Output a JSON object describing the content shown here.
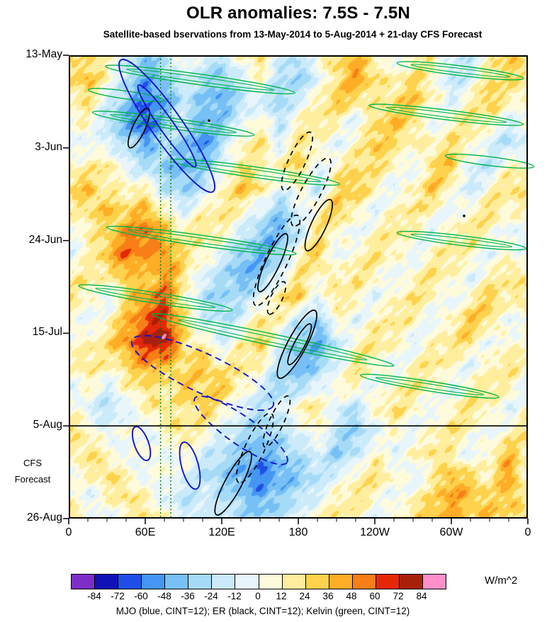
{
  "title": "OLR anomalies: 7.5S - 7.5N",
  "subtitle": "Satellite-based bservations from 13-May-2014 to 5-Aug-2014 + 21-day CFS Forecast",
  "caption": "MJO (blue, CINT=12); ER (black, CINT=12); Kelvin (green, CINT=12)",
  "y_axis": {
    "ticks": [
      "13-May",
      "3-Jun",
      "24-Jun",
      "15-Jul",
      "5-Aug",
      "26-Aug"
    ],
    "side_label_lines": [
      "CFS",
      "Forecast"
    ]
  },
  "x_axis": {
    "ticks": [
      "0",
      "60E",
      "120E",
      "180",
      "120W",
      "60W",
      "0"
    ]
  },
  "colorbar": {
    "unit": "W/m^2",
    "labels": [
      "-84",
      "-72",
      "-60",
      "-48",
      "-36",
      "-24",
      "-12",
      "0",
      "12",
      "24",
      "36",
      "48",
      "60",
      "72",
      "84"
    ],
    "colors": [
      "#7D2EC8",
      "#1111B8",
      "#1F4FE8",
      "#4496F2",
      "#77C0F5",
      "#A6DBF7",
      "#CBEAFA",
      "#E8F6FB",
      "#FEFBDC",
      "#FFEE9E",
      "#FFD24D",
      "#FFAC26",
      "#F87E17",
      "#E42807",
      "#A8200A",
      "#FF8FC8"
    ]
  },
  "chart_data": {
    "type": "heatmap",
    "title": "OLR anomalies: 7.5S - 7.5N",
    "subtitle": "Satellite-based bservations from 13-May-2014 to 5-Aug-2014 + 21-day CFS Forecast",
    "quantity": "OLR anomaly",
    "unit": "W/m^2",
    "x": {
      "name": "longitude",
      "range_deg": [
        0,
        360
      ],
      "tick_degs": [
        0,
        60,
        120,
        180,
        240,
        300,
        360
      ],
      "tick_labels": [
        "0",
        "60E",
        "120E",
        "180",
        "120W",
        "60W",
        "0"
      ],
      "minor_step_deg": 15
    },
    "y": {
      "name": "time",
      "range_days": [
        0,
        105
      ],
      "tick_days": [
        0,
        21,
        42,
        63,
        84,
        105
      ],
      "tick_labels": [
        "13-May",
        "3-Jun",
        "24-Jun",
        "15-Jul",
        "5-Aug",
        "26-Aug"
      ]
    },
    "levels": [
      -84,
      -72,
      -60,
      -48,
      -36,
      -24,
      -12,
      0,
      12,
      24,
      36,
      48,
      60,
      72,
      84
    ],
    "level_colors": [
      "#7D2EC8",
      "#1111B8",
      "#1F4FE8",
      "#4496F2",
      "#77C0F5",
      "#A6DBF7",
      "#CBEAFA",
      "#E8F6FB",
      "#FEFBDC",
      "#FFEE9E",
      "#FFD24D",
      "#FFAC26",
      "#F87E17",
      "#E42807",
      "#A8200A",
      "#FF8FC8"
    ],
    "grid": {
      "lon_start": 0,
      "lon_step_deg": 15,
      "day_start": 0,
      "day_step": 5
    },
    "forecast_start_day": 84,
    "reference_lons": [
      72,
      80
    ],
    "values": [
      [
        12,
        24,
        12,
        -12,
        -36,
        -24,
        12,
        -12,
        -24,
        12,
        24,
        -12,
        -24,
        12,
        24,
        36,
        12,
        -12,
        12,
        24,
        -12,
        -24,
        12,
        36,
        12
      ],
      [
        24,
        36,
        12,
        -24,
        -48,
        -36,
        -12,
        -24,
        -36,
        -12,
        12,
        -24,
        -36,
        -12,
        24,
        48,
        24,
        12,
        24,
        12,
        -24,
        -12,
        24,
        24,
        24
      ],
      [
        12,
        24,
        -12,
        -36,
        -60,
        -48,
        -24,
        -36,
        -48,
        -24,
        -12,
        -36,
        -12,
        12,
        36,
        24,
        12,
        24,
        36,
        12,
        -12,
        12,
        36,
        12,
        12
      ],
      [
        0,
        12,
        -24,
        -48,
        -72,
        -36,
        -12,
        -48,
        -36,
        -12,
        12,
        -24,
        12,
        24,
        12,
        -12,
        24,
        36,
        24,
        -12,
        12,
        24,
        12,
        -12,
        0
      ],
      [
        -12,
        0,
        -12,
        -24,
        -48,
        -24,
        -36,
        -60,
        -24,
        12,
        24,
        -12,
        24,
        12,
        -12,
        12,
        36,
        24,
        12,
        12,
        24,
        12,
        -12,
        -24,
        -12
      ],
      [
        12,
        12,
        24,
        -12,
        -24,
        -36,
        -48,
        -36,
        -12,
        24,
        12,
        12,
        36,
        -12,
        12,
        24,
        24,
        12,
        -12,
        24,
        36,
        -12,
        -24,
        12,
        12
      ],
      [
        24,
        36,
        12,
        12,
        12,
        -24,
        -36,
        -24,
        12,
        36,
        24,
        -12,
        12,
        -24,
        24,
        36,
        12,
        -12,
        12,
        36,
        12,
        -24,
        12,
        24,
        24
      ],
      [
        12,
        24,
        36,
        24,
        36,
        12,
        -12,
        12,
        24,
        12,
        -12,
        -36,
        -12,
        12,
        36,
        12,
        -12,
        12,
        24,
        12,
        -12,
        12,
        24,
        12,
        12
      ],
      [
        0,
        12,
        24,
        48,
        60,
        36,
        12,
        24,
        12,
        -12,
        -36,
        -48,
        -24,
        24,
        12,
        -12,
        12,
        24,
        12,
        -12,
        12,
        24,
        12,
        -12,
        0
      ],
      [
        -12,
        12,
        36,
        60,
        48,
        48,
        24,
        12,
        -12,
        -36,
        -48,
        -36,
        12,
        36,
        -12,
        12,
        24,
        12,
        -12,
        12,
        24,
        12,
        -12,
        12,
        -12
      ],
      [
        12,
        24,
        12,
        36,
        24,
        48,
        24,
        -12,
        -24,
        -48,
        -36,
        -12,
        24,
        12,
        12,
        24,
        12,
        -12,
        12,
        24,
        12,
        -12,
        12,
        24,
        12
      ],
      [
        24,
        12,
        -12,
        24,
        48,
        60,
        12,
        -24,
        -36,
        -24,
        -12,
        24,
        36,
        -12,
        24,
        12,
        -12,
        12,
        24,
        12,
        -12,
        12,
        36,
        12,
        24
      ],
      [
        12,
        -12,
        12,
        36,
        60,
        72,
        24,
        -12,
        -24,
        -12,
        24,
        12,
        -24,
        -36,
        12,
        -12,
        12,
        24,
        12,
        -12,
        12,
        36,
        24,
        -12,
        12
      ],
      [
        0,
        12,
        24,
        48,
        72,
        84,
        24,
        12,
        -12,
        12,
        36,
        -12,
        -36,
        -48,
        -24,
        12,
        24,
        12,
        -12,
        12,
        24,
        24,
        -12,
        12,
        0
      ],
      [
        12,
        24,
        12,
        24,
        48,
        36,
        24,
        36,
        12,
        24,
        12,
        -24,
        -48,
        -36,
        -12,
        24,
        12,
        -12,
        12,
        24,
        12,
        -12,
        12,
        24,
        12
      ],
      [
        -12,
        12,
        -12,
        12,
        24,
        12,
        36,
        24,
        36,
        12,
        -12,
        -36,
        -24,
        -12,
        12,
        12,
        -12,
        12,
        24,
        12,
        -12,
        12,
        24,
        12,
        -12
      ],
      [
        12,
        -12,
        -24,
        -12,
        12,
        24,
        12,
        36,
        12,
        -12,
        -24,
        -12,
        12,
        24,
        -12,
        -24,
        12,
        24,
        12,
        -12,
        12,
        24,
        12,
        -12,
        12
      ],
      [
        24,
        12,
        -12,
        12,
        -12,
        12,
        24,
        12,
        -12,
        -24,
        -36,
        -24,
        -12,
        12,
        -24,
        -36,
        -12,
        12,
        -12,
        12,
        24,
        12,
        -12,
        12,
        24
      ],
      [
        12,
        24,
        12,
        -12,
        12,
        -12,
        12,
        -12,
        -24,
        -36,
        -48,
        -36,
        -24,
        -12,
        -36,
        -24,
        12,
        -12,
        12,
        24,
        12,
        -12,
        12,
        36,
        12
      ],
      [
        0,
        12,
        24,
        12,
        -12,
        12,
        -12,
        -24,
        -36,
        -48,
        -60,
        -48,
        -36,
        -24,
        -12,
        12,
        24,
        12,
        -12,
        12,
        36,
        24,
        12,
        48,
        0
      ],
      [
        12,
        -12,
        12,
        24,
        12,
        -12,
        -24,
        -12,
        -24,
        -36,
        -48,
        -36,
        -24,
        -12,
        12,
        24,
        12,
        -12,
        12,
        24,
        48,
        36,
        24,
        36,
        12
      ],
      [
        24,
        12,
        -12,
        12,
        24,
        12,
        -12,
        -24,
        -12,
        -24,
        -36,
        -24,
        -12,
        12,
        24,
        12,
        -12,
        12,
        24,
        36,
        36,
        24,
        36,
        24,
        24
      ]
    ],
    "overlays": {
      "kelvin": {
        "name": "Kelvin",
        "color": "#00B448",
        "cint": 12,
        "ellipses": [
          {
            "lon": 103,
            "day": 5.5,
            "rlon": 75,
            "rday": 1.2,
            "angle": 8
          },
          {
            "lon": 307,
            "day": 3.5,
            "rlon": 50,
            "rday": 1.1,
            "angle": 7
          },
          {
            "lon": 45,
            "day": 9,
            "rlon": 30,
            "rday": 0.9,
            "angle": 8
          },
          {
            "lon": 82,
            "day": 15.5,
            "rlon": 64,
            "rday": 1.2,
            "angle": 8
          },
          {
            "lon": 296,
            "day": 13.5,
            "rlon": 61,
            "rday": 1.1,
            "angle": 7
          },
          {
            "lon": 146,
            "day": 26.5,
            "rlon": 67,
            "rday": 1.2,
            "angle": 8
          },
          {
            "lon": 330,
            "day": 24,
            "rlon": 35,
            "rday": 1.0,
            "angle": 7
          },
          {
            "lon": 104,
            "day": 42,
            "rlon": 75,
            "rday": 1.2,
            "angle": 8
          },
          {
            "lon": 308,
            "day": 42,
            "rlon": 51,
            "rday": 1.1,
            "angle": 7
          },
          {
            "lon": 68,
            "day": 55,
            "rlon": 61,
            "rday": 1.2,
            "angle": 9
          },
          {
            "lon": 160,
            "day": 64.5,
            "rlon": 97,
            "rday": 1.3,
            "angle": 12
          },
          {
            "lon": 283,
            "day": 75,
            "rlon": 55,
            "rday": 1.1,
            "angle": 9
          }
        ]
      },
      "er": {
        "name": "ER",
        "color": "#000000",
        "cint": 12,
        "ellipses": [
          {
            "lon": 55,
            "day": 16.5,
            "rlon": 17,
            "rday": 1.4,
            "angle": 115,
            "dash": false
          },
          {
            "lon": 179,
            "day": 24,
            "rlon": 25,
            "rday": 1.9,
            "angle": 115,
            "dash": true
          },
          {
            "lon": 190,
            "day": 31,
            "rlon": 30,
            "rday": 2.2,
            "angle": 118,
            "dash": true
          },
          {
            "lon": 196,
            "day": 38.5,
            "rlon": 22,
            "rday": 1.7,
            "angle": 115,
            "dash": false
          },
          {
            "lon": 163,
            "day": 46.5,
            "rlon": 39,
            "rday": 2.5,
            "angle": 115,
            "dash": true
          },
          {
            "lon": 160,
            "day": 47,
            "rlon": 25,
            "rday": 1.6,
            "angle": 115,
            "dash": false
          },
          {
            "lon": 163,
            "day": 55,
            "rlon": 14,
            "rday": 1.3,
            "angle": 115,
            "dash": true
          },
          {
            "lon": 179,
            "day": 65.5,
            "rlon": 30,
            "rday": 2.1,
            "angle": 118,
            "dash": false
          },
          {
            "lon": 181,
            "day": 65.5,
            "rlon": 18,
            "rday": 1.2,
            "angle": 118,
            "dash": false
          },
          {
            "lon": 163,
            "day": 83,
            "rlon": 22,
            "rday": 1.6,
            "angle": 115,
            "dash": true
          },
          {
            "lon": 146,
            "day": 89,
            "rlon": 30,
            "rday": 2.2,
            "angle": 115,
            "dash": true
          },
          {
            "lon": 129,
            "day": 97,
            "rlon": 28,
            "rday": 1.9,
            "angle": 118,
            "dash": false
          }
        ],
        "dots": [
          {
            "lon": 110,
            "day": 14.8
          },
          {
            "lon": 310,
            "day": 36.4
          }
        ]
      },
      "mjo": {
        "name": "MJO",
        "color": "#1414CC",
        "cint": 12,
        "ellipses": [
          {
            "lon": 77,
            "day": 16,
            "rlon": 63,
            "rday": 3.5,
            "angle": 55,
            "dash": false
          },
          {
            "lon": 77,
            "day": 16,
            "rlon": 39,
            "rday": 1.6,
            "angle": 55,
            "dash": false
          },
          {
            "lon": 105,
            "day": 72,
            "rlon": 61,
            "rday": 4.4,
            "angle": 25,
            "dash": true
          },
          {
            "lon": 135,
            "day": 85,
            "rlon": 44,
            "rday": 3.2,
            "angle": 35,
            "dash": true
          },
          {
            "lon": 57,
            "day": 88,
            "rlon": 14,
            "rday": 1.6,
            "angle": 70,
            "dash": false
          },
          {
            "lon": 95,
            "day": 93,
            "rlon": 19,
            "rday": 1.9,
            "angle": 75,
            "dash": false
          }
        ]
      }
    }
  }
}
